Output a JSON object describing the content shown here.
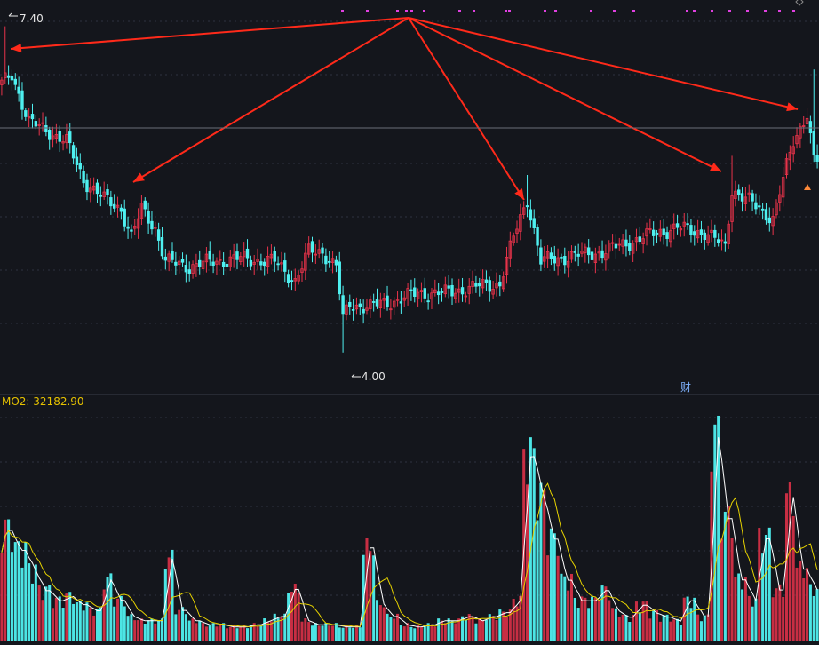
{
  "colors": {
    "background": "#14161c",
    "up": "#e8334a",
    "down": "#4ff0f0",
    "grid": "#2e3140",
    "ma_white": "#ffffff",
    "ma_yellow": "#e6d200",
    "arrow": "#ff2a1a",
    "marker": "#e040e0",
    "price_label": "#e6e6e6",
    "indicator_label": "#e6c200"
  },
  "price_panel": {
    "high_label": "7.40",
    "low_label": "4.00",
    "badge": "财"
  },
  "volume_panel": {
    "indicator_label": "MO2: 32182.90"
  },
  "chart_data": [
    {
      "type": "candlestick",
      "ylim": [
        3.6,
        7.6
      ],
      "high_value": 7.4,
      "low_value": 4.0,
      "trend_points": [
        {
          "i": 0,
          "close": 6.8
        },
        {
          "i": 3,
          "close": 6.9
        },
        {
          "i": 8,
          "close": 6.4
        },
        {
          "i": 14,
          "close": 6.3
        },
        {
          "i": 19,
          "close": 6.2
        },
        {
          "i": 24,
          "close": 5.8
        },
        {
          "i": 30,
          "close": 5.6
        },
        {
          "i": 35,
          "close": 5.5
        },
        {
          "i": 38,
          "close": 5.2
        },
        {
          "i": 41,
          "close": 5.5
        },
        {
          "i": 45,
          "close": 5.3
        },
        {
          "i": 48,
          "close": 4.95
        },
        {
          "i": 55,
          "close": 4.9
        },
        {
          "i": 62,
          "close": 4.95
        },
        {
          "i": 70,
          "close": 4.98
        },
        {
          "i": 80,
          "close": 4.95
        },
        {
          "i": 86,
          "close": 4.75
        },
        {
          "i": 90,
          "close": 5.05
        },
        {
          "i": 94,
          "close": 5.05
        },
        {
          "i": 98,
          "close": 4.9
        },
        {
          "i": 100,
          "close": 4.35
        },
        {
          "i": 102,
          "close": 4.5
        },
        {
          "i": 108,
          "close": 4.48
        },
        {
          "i": 116,
          "close": 4.55
        },
        {
          "i": 122,
          "close": 4.62
        },
        {
          "i": 130,
          "close": 4.62
        },
        {
          "i": 138,
          "close": 4.68
        },
        {
          "i": 146,
          "close": 4.72
        },
        {
          "i": 150,
          "close": 5.2
        },
        {
          "i": 154,
          "close": 5.6
        },
        {
          "i": 158,
          "close": 4.95
        },
        {
          "i": 166,
          "close": 5.0
        },
        {
          "i": 176,
          "close": 5.05
        },
        {
          "i": 184,
          "close": 5.15
        },
        {
          "i": 192,
          "close": 5.25
        },
        {
          "i": 198,
          "close": 5.3
        },
        {
          "i": 206,
          "close": 5.25
        },
        {
          "i": 212,
          "close": 5.1
        },
        {
          "i": 214,
          "close": 5.7
        },
        {
          "i": 220,
          "close": 5.55
        },
        {
          "i": 226,
          "close": 5.4
        },
        {
          "i": 232,
          "close": 6.2
        },
        {
          "i": 236,
          "close": 6.5
        },
        {
          "i": 238,
          "close": 6.0
        }
      ]
    },
    {
      "type": "bar",
      "series": [
        {
          "values": [
            "spikes",
            0.55,
            0.45,
            0.35,
            0.25,
            0.2,
            0.22,
            0.18,
            0.15,
            0.3,
            0.2,
            0.12,
            0.1,
            0.1,
            0.4,
            0.15,
            0.1,
            0.08,
            0.08,
            0.07,
            0.07,
            0.08,
            0.1,
            0.12,
            0.25,
            0.1,
            0.08,
            0.08,
            0.07,
            0.07,
            0.45,
            0.18,
            0.12,
            0.08,
            0.07,
            0.08,
            0.1,
            0.1,
            0.12,
            0.1,
            0.12,
            0.14,
            0.2,
            0.9,
            0.7,
            0.5,
            0.3,
            0.2,
            0.2,
            0.25,
            0.15,
            0.12,
            0.18,
            0.14,
            0.12,
            0.1,
            0.2,
            0.12,
            1.0,
            0.6,
            0.3,
            0.2,
            0.5,
            0.25,
            0.7,
            0.35,
            0.25
          ]
        }
      ]
    }
  ]
}
